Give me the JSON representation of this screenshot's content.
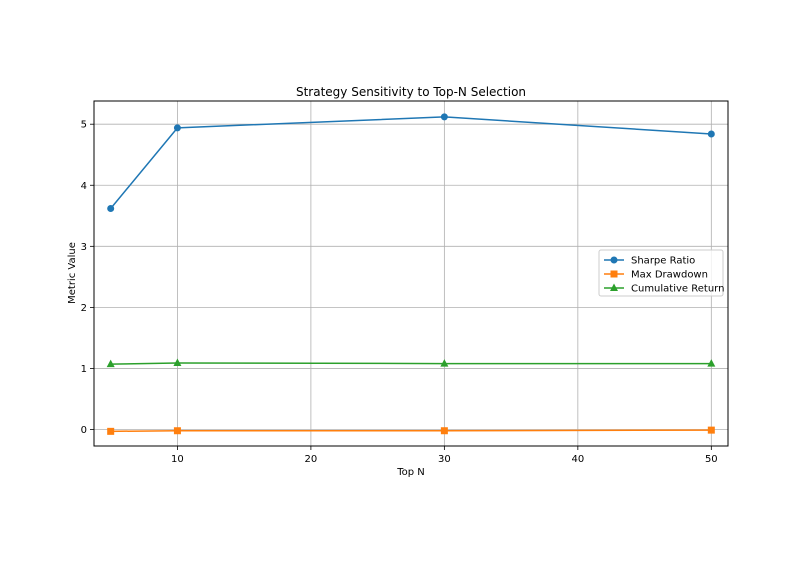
{
  "chart_data": {
    "type": "line",
    "title": "Strategy Sensitivity to Top-N Selection",
    "xlabel": "Top N",
    "ylabel": "Metric Value",
    "x": [
      5,
      10,
      30,
      50
    ],
    "xlim": [
      3.75,
      51.25
    ],
    "ylim": [
      -0.27,
      5.38
    ],
    "xticks": [
      10,
      20,
      30,
      40,
      50
    ],
    "yticks": [
      0,
      1,
      2,
      3,
      4,
      5
    ],
    "grid": true,
    "legend_position": "center-right",
    "series": [
      {
        "name": "Sharpe Ratio",
        "values": [
          3.62,
          4.94,
          5.12,
          4.84
        ],
        "color": "#1f77b4",
        "marker": "circle"
      },
      {
        "name": "Max Drawdown",
        "values": [
          -0.03,
          -0.02,
          -0.02,
          -0.01
        ],
        "color": "#ff7f0e",
        "marker": "square"
      },
      {
        "name": "Cumulative Return",
        "values": [
          1.07,
          1.09,
          1.08,
          1.08
        ],
        "color": "#2ca02c",
        "marker": "triangle"
      }
    ]
  }
}
